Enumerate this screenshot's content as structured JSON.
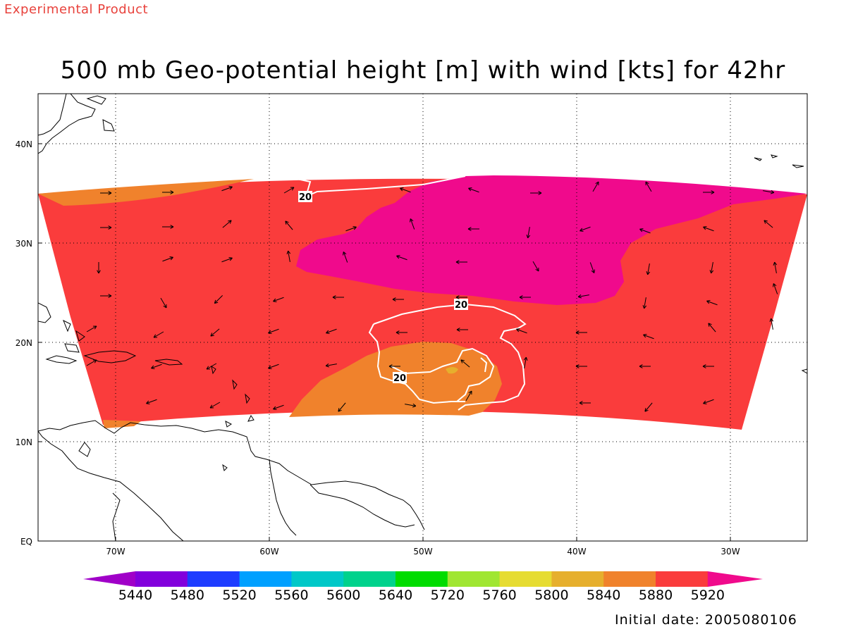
{
  "header": {
    "experimental_label": "Experimental Product",
    "title": "500 mb Geo-potential height [m] with wind [kts] for 42hr"
  },
  "footer": {
    "initial_date": "Initial date: 2005080106"
  },
  "map": {
    "lon_range": [
      -75,
      -25
    ],
    "lat_range": [
      0,
      45
    ],
    "lon_ticks": [
      "70W",
      "60W",
      "50W",
      "40W",
      "30W"
    ],
    "lat_ticks": [
      "EQ",
      "10N",
      "20N",
      "30N",
      "40N"
    ],
    "grid": "dotted",
    "contour_label": "20",
    "fill_colors": {
      "5880": "#f0822c",
      "5920": "#fa3c3c",
      "above": "#f00a8c"
    }
  },
  "colorbar": {
    "labels": [
      "5440",
      "5480",
      "5520",
      "5560",
      "5600",
      "5640",
      "5720",
      "5760",
      "5800",
      "5840",
      "5880",
      "5920"
    ],
    "colors": [
      "#a000c8",
      "#8200dc",
      "#1e3cff",
      "#00a0ff",
      "#00c8c8",
      "#00d28c",
      "#00dc00",
      "#a0e632",
      "#e6dc32",
      "#e6af2d",
      "#f0822c",
      "#fa3c3c",
      "#f00a8c"
    ]
  }
}
